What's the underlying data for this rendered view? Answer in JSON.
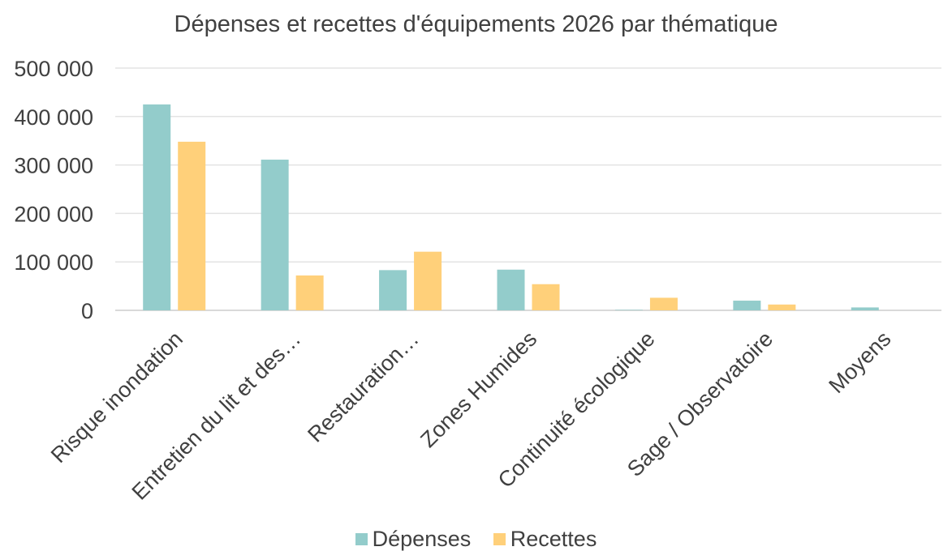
{
  "chart_data": {
    "type": "bar",
    "title": "Dépenses et recettes d'équipements 2026 par thématique",
    "xlabel": "",
    "ylabel": "",
    "ylim": [
      0,
      500000
    ],
    "yticks": [
      "0",
      "100 000",
      "200 000",
      "300 000",
      "400 000",
      "500 000"
    ],
    "categories": [
      "Risque inondation",
      "Entretien du lit et des…",
      "Restauration…",
      "Zones Humides",
      "Continuité écologique",
      "Sage / Observatoire",
      "Moyens"
    ],
    "series": [
      {
        "name": "Dépenses",
        "color": "#93CCCB",
        "values": [
          425000,
          311000,
          83000,
          84000,
          1000,
          20000,
          6000
        ]
      },
      {
        "name": "Recettes",
        "color": "#FFD07A",
        "values": [
          348000,
          72000,
          121000,
          54000,
          26000,
          12000,
          0
        ]
      }
    ],
    "grid": true,
    "legend_position": "bottom"
  }
}
